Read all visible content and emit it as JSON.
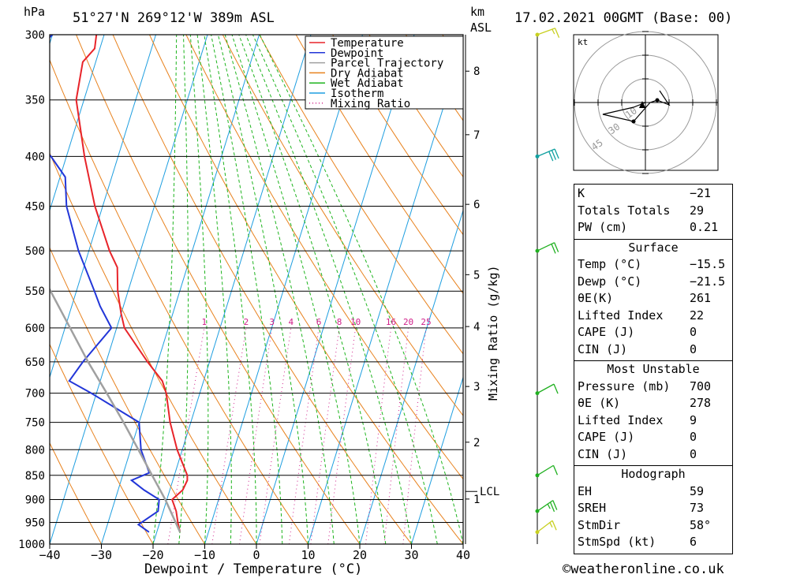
{
  "header": {
    "pressure_unit": "hPa",
    "location": "51°27'N  269°12'W  389m  ASL",
    "km_label": "km",
    "asl_label": "ASL",
    "datetime": "17.02.2021  00GMT  (Base: 00)"
  },
  "colors": {
    "temperature": "#e8242a",
    "dewpoint": "#2236d8",
    "parcel": "#a0a0a0",
    "dry_adiabat": "#e8821e",
    "wet_adiabat": "#1eb41e",
    "isotherm": "#1e9ee0",
    "mixing_ratio": "#d0208a"
  },
  "chart_data": {
    "type": "line",
    "title": "",
    "xlabel": "Dewpoint / Temperature (°C)",
    "ylabel": "hPa",
    "y2label": "Mixing Ratio (g/kg)",
    "xlim": [
      -40,
      40
    ],
    "ylim": [
      1000,
      300
    ],
    "y_scale": "log",
    "skew": "skew-T",
    "x_ticks": [
      "−40",
      "−30",
      "−20",
      "−10",
      "0",
      "10",
      "20",
      "30",
      "40"
    ],
    "y_ticks": [
      300,
      350,
      400,
      450,
      500,
      550,
      600,
      650,
      700,
      750,
      800,
      850,
      900,
      950,
      1000
    ],
    "km_ticks": [
      {
        "label": "8",
        "p": 327
      },
      {
        "label": "7",
        "p": 380
      },
      {
        "label": "6",
        "p": 448
      },
      {
        "label": "5",
        "p": 529
      },
      {
        "label": "4",
        "p": 598
      },
      {
        "label": "3",
        "p": 689
      },
      {
        "label": "2",
        "p": 786
      },
      {
        "label": "1",
        "p": 899
      }
    ],
    "lcl": {
      "label": "LCL",
      "p": 883
    },
    "mixing_ratio_labels": [
      "1",
      "2",
      "3",
      "4",
      "6",
      "8",
      "10",
      "16",
      "20",
      "25"
    ],
    "legend": [
      "Temperature",
      "Dewpoint",
      "Parcel Trajectory",
      "Dry Adiabat",
      "Wet Adiabat",
      "Isotherm",
      "Mixing Ratio"
    ],
    "legend_position": "top-right",
    "series": [
      {
        "name": "Temperature",
        "points": [
          [
            972,
            -15.5
          ],
          [
            950,
            -16.5
          ],
          [
            925,
            -17.5
          ],
          [
            900,
            -19.0
          ],
          [
            880,
            -17.5
          ],
          [
            860,
            -17.2
          ],
          [
            850,
            -17.5
          ],
          [
            800,
            -21.0
          ],
          [
            750,
            -24.0
          ],
          [
            700,
            -26.5
          ],
          [
            680,
            -28.0
          ],
          [
            650,
            -32.0
          ],
          [
            600,
            -38.5
          ],
          [
            580,
            -40.0
          ],
          [
            550,
            -42.0
          ],
          [
            520,
            -43.5
          ],
          [
            500,
            -46.0
          ],
          [
            450,
            -51.5
          ],
          [
            400,
            -56.5
          ],
          [
            350,
            -61.5
          ],
          [
            320,
            -62.5
          ],
          [
            310,
            -61.0
          ],
          [
            300,
            -61.5
          ]
        ]
      },
      {
        "name": "Dewpoint",
        "points": [
          [
            972,
            -21.5
          ],
          [
            955,
            -24.0
          ],
          [
            925,
            -21.0
          ],
          [
            900,
            -21.5
          ],
          [
            880,
            -25.0
          ],
          [
            860,
            -28.0
          ],
          [
            845,
            -25.0
          ],
          [
            800,
            -28.0
          ],
          [
            750,
            -30.0
          ],
          [
            700,
            -41.0
          ],
          [
            680,
            -46.0
          ],
          [
            650,
            -44.5
          ],
          [
            600,
            -41.0
          ],
          [
            570,
            -44.5
          ],
          [
            550,
            -46.5
          ],
          [
            500,
            -52.0
          ],
          [
            450,
            -57.0
          ],
          [
            420,
            -59.0
          ],
          [
            400,
            -63.0
          ],
          [
            380,
            -68.0
          ],
          [
            350,
            -68.5
          ],
          [
            320,
            -72.5
          ],
          [
            310,
            -72.0
          ],
          [
            300,
            -70.0
          ]
        ]
      },
      {
        "name": "Parcel Trajectory",
        "points": [
          [
            972,
            -15.5
          ],
          [
            900,
            -20.3
          ],
          [
            850,
            -24.3
          ],
          [
            800,
            -28.5
          ],
          [
            750,
            -33.0
          ],
          [
            700,
            -38.0
          ],
          [
            650,
            -43.5
          ],
          [
            600,
            -49.0
          ],
          [
            550,
            -55.0
          ],
          [
            500,
            -61.5
          ],
          [
            450,
            -68.5
          ]
        ]
      }
    ]
  },
  "wind_barbs": [
    {
      "p": 300,
      "speed_kt": 5
    },
    {
      "p": 400,
      "speed_kt": 30
    },
    {
      "p": 500,
      "speed_kt": 20
    },
    {
      "p": 700,
      "speed_kt": 10
    },
    {
      "p": 850,
      "speed_kt": 10
    },
    {
      "p": 925,
      "speed_kt": 15
    },
    {
      "p": 972,
      "speed_kt": 5
    }
  ],
  "hodograph": {
    "unit": "kt",
    "ring_labels": [
      "10",
      "30",
      "45"
    ],
    "points": [
      [
        0,
        0
      ],
      [
        -5,
        2
      ],
      [
        -18,
        5
      ],
      [
        -5,
        8
      ],
      [
        2,
        0
      ],
      [
        5,
        -1
      ],
      [
        10,
        1
      ],
      [
        6,
        -5
      ]
    ]
  },
  "indices": {
    "general": [
      {
        "label": "K",
        "value": "−21"
      },
      {
        "label": "Totals Totals",
        "value": "29"
      },
      {
        "label": "PW (cm)",
        "value": "0.21"
      }
    ],
    "surface_title": "Surface",
    "surface": [
      {
        "label": "Temp (°C)",
        "value": "−15.5"
      },
      {
        "label": "Dewp (°C)",
        "value": "−21.5"
      },
      {
        "label": "θE(K)",
        "value": "261"
      },
      {
        "label": "Lifted Index",
        "value": "22"
      },
      {
        "label": "CAPE (J)",
        "value": "0"
      },
      {
        "label": "CIN (J)",
        "value": "0"
      }
    ],
    "most_unstable_title": "Most Unstable",
    "most_unstable": [
      {
        "label": "Pressure (mb)",
        "value": "700"
      },
      {
        "label": "θE (K)",
        "value": "278"
      },
      {
        "label": "Lifted Index",
        "value": "9"
      },
      {
        "label": "CAPE (J)",
        "value": "0"
      },
      {
        "label": "CIN (J)",
        "value": "0"
      }
    ],
    "hodograph_title": "Hodograph",
    "hodograph": [
      {
        "label": "EH",
        "value": "59"
      },
      {
        "label": "SREH",
        "value": "73"
      },
      {
        "label": "StmDir",
        "value": "58°"
      },
      {
        "label": "StmSpd (kt)",
        "value": "6"
      }
    ]
  },
  "footer": {
    "copyright": "©weatheronline.co.uk"
  }
}
